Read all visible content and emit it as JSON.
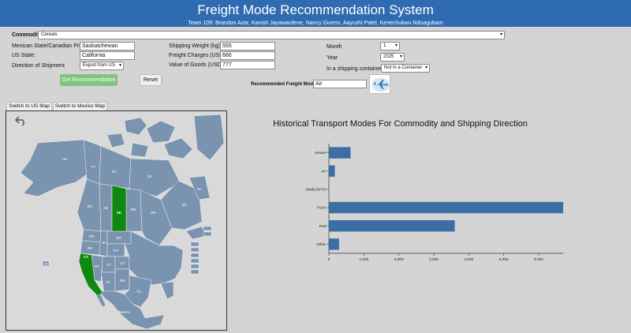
{
  "header": {
    "title": "Freight Mode Recommendation System",
    "subtitle": "Team 109: Brandon Azar, Kanish Jayawardene, Nancy Givens, Aayushi Patel, Kenechukwu Nduagubam"
  },
  "form": {
    "commodity_label": "Commodity",
    "commodity_value": "Cereals",
    "mex_can_label": "Mexican State/Canadian Prov.",
    "mex_can_value": "Saskatchewan",
    "us_state_label": "US State:",
    "us_state_value": "California",
    "direction_label": "Direction of Shipment",
    "direction_value": "Export from US",
    "weight_label": "Shipping Weight (kg)",
    "weight_value": "555",
    "charges_label": "Freight Charges (USD)",
    "charges_value": "666",
    "goods_label": "Value of Goods (USD)",
    "goods_value": "777",
    "month_label": "Month",
    "month_value": "1",
    "year_label": "Year",
    "year_value": "2025",
    "container_label": "In a shipping container?",
    "container_value": "Not in a Container",
    "get_recommendation": "Get Recommendation",
    "reset": "Reset",
    "recommended_label": "Recommended Freight Mode:",
    "recommended_value": "Air"
  },
  "map_controls": {
    "us_map_button": "Switch to US Map",
    "mexico_map_button": "Switch to Mexico Map"
  },
  "map": {
    "region_labels": {
      "AK": "AK",
      "YT": "YT",
      "NT": "NT",
      "NU": "NU",
      "BC": "BC",
      "AB": "AB",
      "SK": "SK",
      "MB": "MB",
      "ON": "ON",
      "QC": "QC",
      "NL": "NL",
      "WA": "WA",
      "OR": "OR",
      "CA": "CA",
      "NV": "NV",
      "ID": "ID",
      "MT": "MT",
      "WY": "WY",
      "UT": "UT",
      "AZ": "AZ",
      "CO": "CO",
      "NM": "NM",
      "TX": "TX",
      "HI": "HI",
      "Mexico": "Mexico"
    },
    "colors": {
      "land": "#7a93ae",
      "selected": "#118811",
      "water": "#d9d9d9"
    }
  },
  "chart_data": {
    "type": "bar",
    "orientation": "horizontal",
    "title": "Historical Transport Modes For Commodity and Shipping Direction",
    "categories": [
      "Vessel",
      "Air",
      "Mail(USPS)",
      "Truck",
      "Rail",
      "Other"
    ],
    "values": [
      620,
      170,
      0,
      6700,
      3600,
      290
    ],
    "xticks": [
      0,
      1000,
      2000,
      3000,
      4000,
      5000,
      6000
    ],
    "xtick_labels": [
      "0",
      "1,000",
      "2,000",
      "3,000",
      "4,000",
      "5,000",
      "6,000"
    ],
    "xlim": [
      0,
      6700
    ],
    "bar_color": "#3a6ea5"
  }
}
